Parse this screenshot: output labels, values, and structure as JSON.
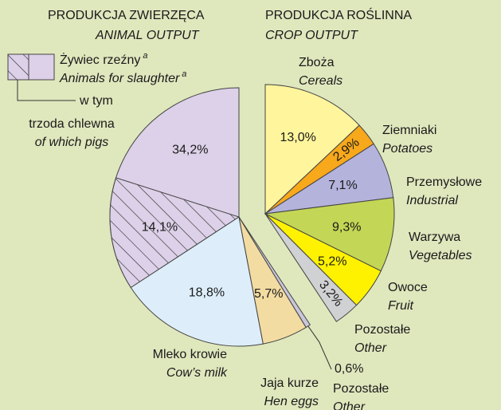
{
  "chart_data": {
    "type": "pie",
    "groups": [
      {
        "title": "PRODUKCJA ZWIERZĘCA",
        "subtitle": "ANIMAL OUTPUT",
        "slices": [
          {
            "name": "Żywiec rzeźny",
            "name_en": "Animals for slaughter",
            "note": "a",
            "value": 34.2,
            "value_label": "34,2%",
            "color": "#dcd1e8",
            "part": {
              "name": "w tym",
              "name2": "trzoda chlewna",
              "name_en": "of which pigs",
              "value": 14.1,
              "value_label": "14,1%"
            }
          },
          {
            "name": "Mleko krowie",
            "name_en": "Cow’s milk",
            "value": 18.8,
            "value_label": "18,8%",
            "color": "#ddeefa"
          },
          {
            "name": "Jaja kurze",
            "name_en": "Hen eggs",
            "value": 5.7,
            "value_label": "5,7%",
            "color": "#f3dca2"
          },
          {
            "name": "Pozostałe",
            "name_en": "Other",
            "value": 0.6,
            "value_label": "0,6%",
            "color": "#c9c6d9"
          }
        ]
      },
      {
        "title": "PRODUKCJA ROŚLINNA",
        "subtitle": "CROP OUTPUT",
        "slices": [
          {
            "name": "Zboża",
            "name_en": "Cereals",
            "value": 13.0,
            "value_label": "13,0%",
            "color": "#fff59c"
          },
          {
            "name": "Ziemniaki",
            "name_en": "Potatoes",
            "value": 2.9,
            "value_label": "2,9%",
            "color": "#f7a81b"
          },
          {
            "name": "Przemysłowe",
            "name_en": "Industrial",
            "value": 7.1,
            "value_label": "7,1%",
            "color": "#b4b3dc"
          },
          {
            "name": "Warzywa",
            "name_en": "Vegetables",
            "value": 9.3,
            "value_label": "9,3%",
            "color": "#c4d655"
          },
          {
            "name": "Owoce",
            "name_en": "Fruit",
            "value": 5.2,
            "value_label": "5,2%",
            "color": "#fff200"
          },
          {
            "name": "Pozostałe",
            "name_en": "Other",
            "value": 3.2,
            "value_label": "3,2%",
            "color": "#d0d1d3"
          }
        ]
      }
    ]
  }
}
